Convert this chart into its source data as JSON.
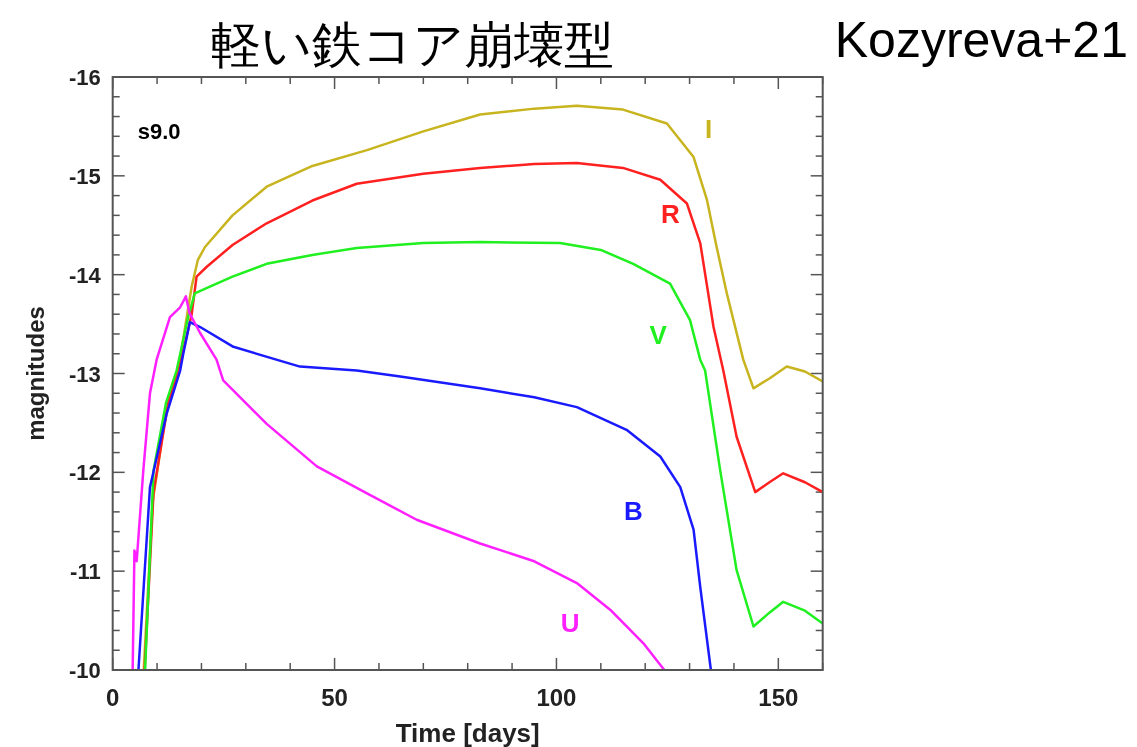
{
  "chart_data": {
    "type": "line",
    "title": "軽い鉄コア崩壊型",
    "subtitle": "Kozyreva+21",
    "xlabel": "Time [days]",
    "ylabel": "magnitudes",
    "annotations": [
      "s9.0"
    ],
    "xlim": [
      0,
      160
    ],
    "ylim": [
      -10,
      -16
    ],
    "xticks": [
      0,
      {
        "value": 10,
        "label": null
      },
      {
        "value": 20,
        "label": null
      },
      {
        "value": 30,
        "label": null
      },
      {
        "value": 40,
        "label": null
      },
      50,
      {
        "value": 60,
        "label": null
      },
      {
        "value": 70,
        "label": null
      },
      {
        "value": 80,
        "label": null
      },
      {
        "value": 90,
        "label": null
      },
      100,
      {
        "value": 110,
        "label": null
      },
      {
        "value": 120,
        "label": null
      },
      {
        "value": 130,
        "label": null
      },
      {
        "value": 140,
        "label": null
      },
      150,
      {
        "value": 160,
        "label": null
      }
    ],
    "yticks": [
      -16,
      {
        "value": -15.8,
        "label": null
      },
      {
        "value": -15.6,
        "label": null
      },
      {
        "value": -15.4,
        "label": null
      },
      {
        "value": -15.2,
        "label": null
      },
      -15,
      {
        "value": -14.8,
        "label": null
      },
      {
        "value": -14.6,
        "label": null
      },
      {
        "value": -14.4,
        "label": null
      },
      {
        "value": -14.2,
        "label": null
      },
      -14,
      {
        "value": -13.8,
        "label": null
      },
      {
        "value": -13.6,
        "label": null
      },
      {
        "value": -13.4,
        "label": null
      },
      {
        "value": -13.2,
        "label": null
      },
      -13,
      {
        "value": -12.8,
        "label": null
      },
      {
        "value": -12.6,
        "label": null
      },
      {
        "value": -12.4,
        "label": null
      },
      {
        "value": -12.2,
        "label": null
      },
      -12,
      {
        "value": -11.8,
        "label": null
      },
      {
        "value": -11.6,
        "label": null
      },
      {
        "value": -11.4,
        "label": null
      },
      {
        "value": -11.2,
        "label": null
      },
      -11,
      {
        "value": -10.8,
        "label": null
      },
      {
        "value": -10.6,
        "label": null
      },
      {
        "value": -10.4,
        "label": null
      },
      {
        "value": -10.2,
        "label": null
      },
      -10
    ],
    "line_style": "solid",
    "marker": "none",
    "series": [
      {
        "name": "I",
        "color": "#c8b41e",
        "x": [
          7.0,
          9.0,
          12.0,
          15.0,
          17.8,
          19.2,
          20.8,
          27,
          34.7,
          45,
          57.3,
          70,
          82.8,
          95,
          104.6,
          115,
          124.9,
          130.9,
          133.9,
          136,
          138.4,
          142.1,
          144.4,
          148,
          151.9,
          156,
          160
        ],
        "values": [
          -10,
          -11.7,
          -12.6,
          -13.1,
          -13.88,
          -14.15,
          -14.28,
          -14.6,
          -14.89,
          -15.1,
          -15.26,
          -15.45,
          -15.62,
          -15.68,
          -15.71,
          -15.67,
          -15.53,
          -15.19,
          -14.76,
          -14.3,
          -13.81,
          -13.14,
          -12.85,
          -12.95,
          -13.07,
          -13.02,
          -12.92
        ]
      },
      {
        "name": "R",
        "color": "#ff2020",
        "x": [
          7.2,
          9.2,
          12.5,
          15.5,
          17.8,
          18.9,
          21.2,
          27,
          34.7,
          45,
          55,
          70,
          82.8,
          95,
          104.6,
          115,
          123.4,
          129.4,
          132.4,
          135.4,
          137.6,
          140.6,
          144.8,
          148,
          151.1,
          156,
          160
        ],
        "values": [
          -10,
          -11.8,
          -12.7,
          -13.15,
          -13.6,
          -13.98,
          -14.08,
          -14.3,
          -14.52,
          -14.75,
          -14.92,
          -15.02,
          -15.08,
          -15.12,
          -15.13,
          -15.08,
          -14.96,
          -14.72,
          -14.32,
          -13.47,
          -13.03,
          -12.36,
          -11.8,
          -11.9,
          -11.99,
          -11.9,
          -11.8
        ]
      },
      {
        "name": "V",
        "color": "#20f020",
        "x": [
          7.3,
          9.2,
          12,
          14.4,
          17.0,
          18.5,
          21.9,
          27,
          34.7,
          45,
          55,
          70,
          82.8,
          100.8,
          110,
          117.3,
          125.6,
          130.1,
          132.4,
          133.5,
          136.9,
          140.6,
          144.4,
          148,
          151.1,
          156,
          160
        ],
        "values": [
          -10,
          -12.02,
          -12.7,
          -13.03,
          -13.57,
          -13.81,
          -13.88,
          -13.98,
          -14.11,
          -14.2,
          -14.27,
          -14.32,
          -14.33,
          -14.32,
          -14.25,
          -14.11,
          -13.91,
          -13.54,
          -13.14,
          -13.03,
          -12.02,
          -11.01,
          -10.44,
          -10.58,
          -10.69,
          -10.6,
          -10.47
        ]
      },
      {
        "name": "B",
        "color": "#1a1aff",
        "x": [
          5.8,
          8.4,
          12.2,
          15.2,
          15.9,
          17.4,
          19.7,
          27.2,
          42.2,
          55,
          64.8,
          82.8,
          95,
          104.6,
          115.8,
          123.4,
          127.9,
          130.9,
          132.4,
          134.8
        ],
        "values": [
          -10,
          -11.85,
          -12.6,
          -13.03,
          -13.2,
          -13.52,
          -13.47,
          -13.27,
          -13.07,
          -13.03,
          -12.97,
          -12.85,
          -12.76,
          -12.66,
          -12.43,
          -12.16,
          -11.85,
          -11.42,
          -10.84,
          -10
        ]
      },
      {
        "name": "U",
        "color": "#ff20ff",
        "x": [
          4.5,
          4.9,
          5.4,
          6.9,
          8.4,
          9.9,
          12.9,
          15.2,
          16.5,
          17.3,
          19.7,
          23.4,
          24.9,
          34.7,
          46,
          57.2,
          68.5,
          82.8,
          95,
          104.6,
          112.1,
          119.6,
          124.3
        ],
        "values": [
          -10,
          -11.21,
          -11.1,
          -12.02,
          -12.8,
          -13.14,
          -13.57,
          -13.67,
          -13.78,
          -13.61,
          -13.41,
          -13.14,
          -12.93,
          -12.49,
          -12.06,
          -11.79,
          -11.52,
          -11.28,
          -11.1,
          -10.88,
          -10.61,
          -10.27,
          -10
        ]
      }
    ]
  }
}
